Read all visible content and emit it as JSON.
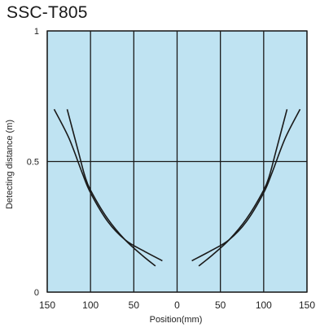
{
  "chart_data": {
    "type": "line",
    "title": "SSC-T805",
    "xlabel": "Position(mm)",
    "ylabel": "Detecting distance (m)",
    "xlim": [
      -150,
      150
    ],
    "ylim": [
      0,
      1
    ],
    "x_tick_labels": [
      "150",
      "100",
      "50",
      "0",
      "50",
      "100",
      "150"
    ],
    "x_tick_values": [
      -150,
      -100,
      -50,
      0,
      50,
      100,
      150
    ],
    "y_tick_labels": [
      "0",
      "0.5",
      "1"
    ],
    "y_tick_values": [
      0,
      0.5,
      1
    ],
    "grid": true,
    "series": [
      {
        "points": [
          [
            -142,
            0.7
          ],
          [
            -125,
            0.59
          ],
          [
            -110,
            0.46
          ],
          [
            -100,
            0.38
          ],
          [
            -80,
            0.27
          ],
          [
            -60,
            0.2
          ],
          [
            -40,
            0.16
          ],
          [
            -17,
            0.12
          ]
        ]
      },
      {
        "points": [
          [
            -127,
            0.7
          ],
          [
            -115,
            0.55
          ],
          [
            -107,
            0.45
          ],
          [
            -100,
            0.39
          ],
          [
            -80,
            0.28
          ],
          [
            -60,
            0.2
          ],
          [
            -40,
            0.14
          ],
          [
            -25,
            0.1
          ]
        ]
      },
      {
        "points": [
          [
            17,
            0.12
          ],
          [
            40,
            0.16
          ],
          [
            60,
            0.2
          ],
          [
            80,
            0.27
          ],
          [
            100,
            0.38
          ],
          [
            110,
            0.46
          ],
          [
            125,
            0.59
          ],
          [
            142,
            0.7
          ]
        ]
      },
      {
        "points": [
          [
            25,
            0.1
          ],
          [
            40,
            0.14
          ],
          [
            60,
            0.2
          ],
          [
            80,
            0.28
          ],
          [
            100,
            0.39
          ],
          [
            107,
            0.45
          ],
          [
            115,
            0.55
          ],
          [
            127,
            0.7
          ]
        ]
      }
    ],
    "colors": {
      "plot_background": "#bfe3f2",
      "grid": "#1a1a1a",
      "line": "#1a1a1a"
    }
  }
}
